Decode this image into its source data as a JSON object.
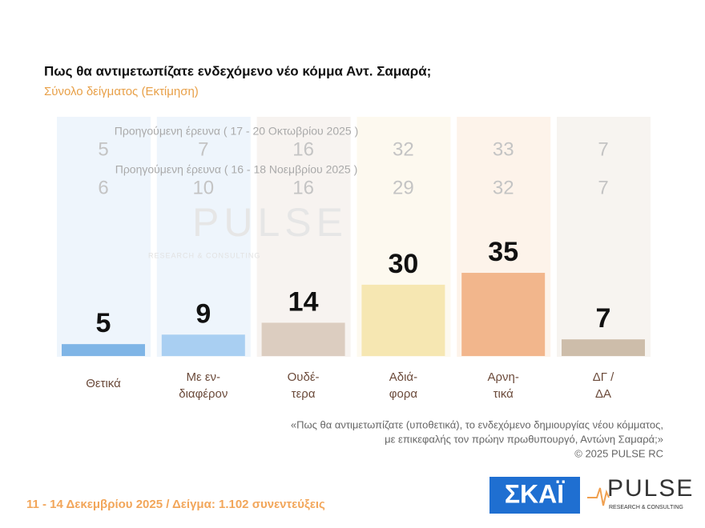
{
  "chart_data": {
    "type": "bar",
    "title": "Πως θα αντιμετωπίζατε ενδεχόμενο νέο κόμμα Αντ. Σαμαρά;",
    "subtitle": "Σύνολο δείγματος  (Εκτίμηση)",
    "categories": [
      [
        "Θετικά"
      ],
      [
        "Με εν-",
        "διαφέρον"
      ],
      [
        "Ουδέ-",
        "τερα"
      ],
      [
        "Αδιά-",
        "φορα"
      ],
      [
        "Αρνη-",
        "τικά"
      ],
      [
        "ΔΓ /",
        "ΔΑ"
      ]
    ],
    "values": [
      5,
      9,
      14,
      30,
      35,
      7
    ],
    "colors": [
      "#7fb5e6",
      "#a9cff2",
      "#dccdc0",
      "#f6e7b2",
      "#f2b68c",
      "#cdbdaa"
    ],
    "column_colors": [
      "#eef5fc",
      "#eef5fc",
      "#f7f3f0",
      "#fdf9ef",
      "#fdf3ea",
      "#f7f4f0"
    ],
    "previous": [
      {
        "name": "Προηγούμενη έρευνα ( 17 - 20 Οκτωβρίου 2025 )",
        "values": [
          5,
          7,
          16,
          32,
          33,
          7
        ]
      },
      {
        "name": "Προηγούμενη έρευνα ( 16 - 18 Νοεμβρίου 2025 )",
        "values": [
          6,
          10,
          16,
          29,
          32,
          7
        ]
      }
    ],
    "watermark": {
      "name": "PULSE",
      "tagline": "RESEARCH & CONSULTING"
    },
    "question": [
      "«Πως θα αντιμετωπίζατε (υποθετικά), το ενδεχόμενο δημιουργίας νέου κόμματος,",
      "με επικεφαλής τον πρώην πρωθυπουργό, Αντώνη Σαμαρά;»",
      "©  2025  PULSE RC"
    ],
    "footer": "11 - 14 Δεκεμβρίου 2025  /  Δείγμα:  1.102 συνεντεύξεις",
    "logos": {
      "channel": "ΣΚΑΪ",
      "pollster": "PULSE",
      "pollster_tagline": "RESEARCH & CONSULTING"
    }
  }
}
